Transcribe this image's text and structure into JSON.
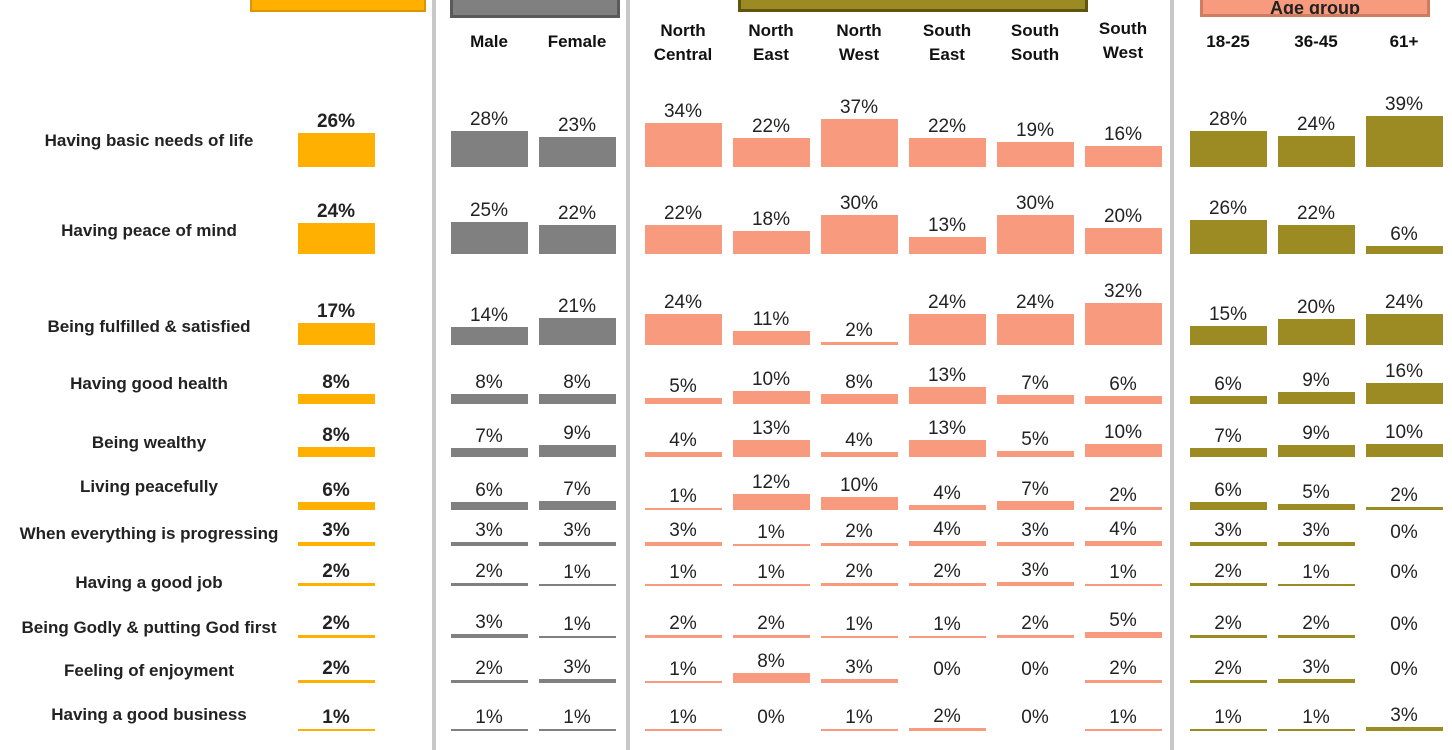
{
  "header_boxes": {
    "total": {
      "color": "#FFB000",
      "label": ""
    },
    "gender": {
      "color": "#808080",
      "label": ""
    },
    "zone": {
      "color": "#9C8A22",
      "label": ""
    },
    "age": {
      "color": "#F79A7E",
      "label": "Age group"
    }
  },
  "chart_data": {
    "type": "bar",
    "categories": [
      "Having basic needs of life",
      "Having peace of mind",
      "Being fulfilled & satisfied",
      "Having good health",
      "Being wealthy",
      "Living peacefully",
      "When everything is progressing",
      "Having a good job",
      "Being Godly & putting God first",
      "Feeling of enjoyment",
      "Having a good business"
    ],
    "value_suffix": "%",
    "groups": [
      {
        "key": "total",
        "color": "#FFB000",
        "series": [
          {
            "name": "",
            "values": [
              26,
              24,
              17,
              8,
              8,
              6,
              3,
              2,
              2,
              2,
              1
            ]
          }
        ]
      },
      {
        "key": "gender",
        "color": "#808080",
        "series": [
          {
            "name": "Male",
            "values": [
              28,
              25,
              14,
              8,
              7,
              6,
              3,
              2,
              3,
              2,
              1
            ]
          },
          {
            "name": "Female",
            "values": [
              23,
              22,
              21,
              8,
              9,
              7,
              3,
              1,
              1,
              3,
              1
            ]
          }
        ]
      },
      {
        "key": "zone",
        "color": "#F79A7E",
        "series": [
          {
            "name": "North Central",
            "values": [
              34,
              22,
              24,
              5,
              4,
              1,
              3,
              1,
              2,
              1,
              1
            ]
          },
          {
            "name": "North East",
            "values": [
              22,
              18,
              11,
              10,
              13,
              12,
              1,
              1,
              2,
              8,
              0
            ]
          },
          {
            "name": "North West",
            "values": [
              37,
              30,
              2,
              8,
              4,
              10,
              2,
              2,
              1,
              3,
              1
            ]
          },
          {
            "name": "South East",
            "values": [
              22,
              13,
              24,
              13,
              13,
              4,
              4,
              2,
              1,
              0,
              2
            ]
          },
          {
            "name": "South South",
            "values": [
              19,
              30,
              24,
              7,
              5,
              7,
              3,
              3,
              2,
              0,
              0
            ]
          },
          {
            "name": "South West",
            "values": [
              16,
              20,
              32,
              6,
              10,
              2,
              4,
              1,
              5,
              2,
              1
            ]
          }
        ]
      },
      {
        "key": "age",
        "color": "#9C8A22",
        "series": [
          {
            "name": "18-25",
            "values": [
              28,
              26,
              15,
              6,
              7,
              6,
              3,
              2,
              2,
              2,
              1
            ]
          },
          {
            "name": "36-45",
            "values": [
              24,
              22,
              20,
              9,
              9,
              5,
              3,
              1,
              2,
              3,
              1
            ]
          },
          {
            "name": "61+",
            "values": [
              39,
              6,
              24,
              16,
              10,
              2,
              0,
              0,
              0,
              0,
              3
            ]
          }
        ]
      }
    ]
  }
}
